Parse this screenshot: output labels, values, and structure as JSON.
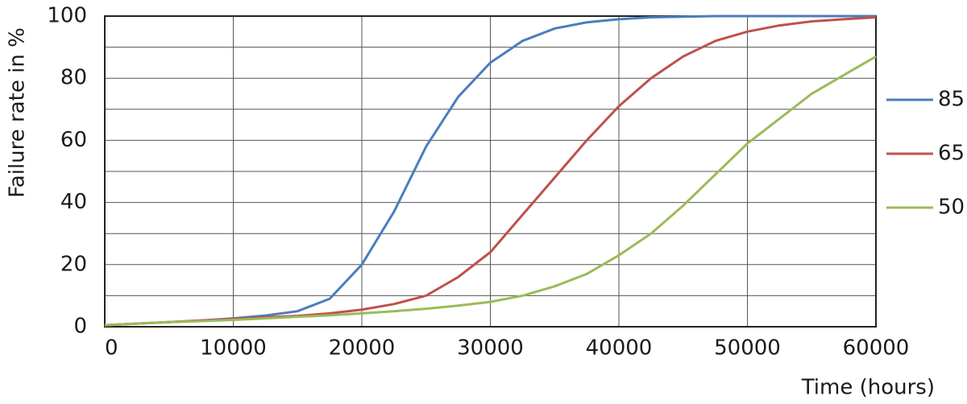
{
  "chart_data": {
    "type": "line",
    "x_label": "Time (hours)",
    "y_label": "Failure rate in %",
    "x": [
      0,
      2500,
      5000,
      7500,
      10000,
      12500,
      15000,
      17500,
      20000,
      22500,
      25000,
      27500,
      30000,
      32500,
      35000,
      37500,
      40000,
      42500,
      45000,
      47500,
      50000,
      52500,
      55000,
      57500,
      60000
    ],
    "series": [
      {
        "name": "85",
        "color": "#4a7ebb",
        "values": [
          0.5,
          1,
          1.5,
          2,
          2.7,
          3.6,
          5,
          9,
          20,
          37,
          58,
          74,
          85,
          92,
          96,
          98,
          99,
          99.6,
          99.8,
          100,
          100,
          100,
          100,
          100,
          100
        ]
      },
      {
        "name": "65",
        "color": "#c0504d",
        "values": [
          0.5,
          1,
          1.5,
          2,
          2.5,
          3,
          3.5,
          4.3,
          5.5,
          7.3,
          10,
          16,
          24,
          36,
          48,
          60,
          71,
          80,
          87,
          92,
          95,
          97,
          98.3,
          99,
          99.6
        ]
      },
      {
        "name": "50",
        "color": "#9bbb59",
        "values": [
          0.5,
          1,
          1.5,
          1.8,
          2.2,
          2.7,
          3.2,
          3.7,
          4.3,
          5,
          5.8,
          6.8,
          8,
          10,
          13,
          17,
          23,
          30,
          39,
          49,
          59,
          67,
          75,
          81,
          87
        ]
      }
    ],
    "xlim": [
      0,
      60000
    ],
    "xticks": [
      0,
      10000,
      20000,
      30000,
      40000,
      50000,
      60000
    ],
    "ylim": [
      0,
      100
    ],
    "yticks": [
      0,
      20,
      40,
      60,
      80,
      100
    ],
    "minor_yticks": [
      10,
      30,
      50,
      70,
      90
    ],
    "grid": true,
    "legend": "right"
  }
}
